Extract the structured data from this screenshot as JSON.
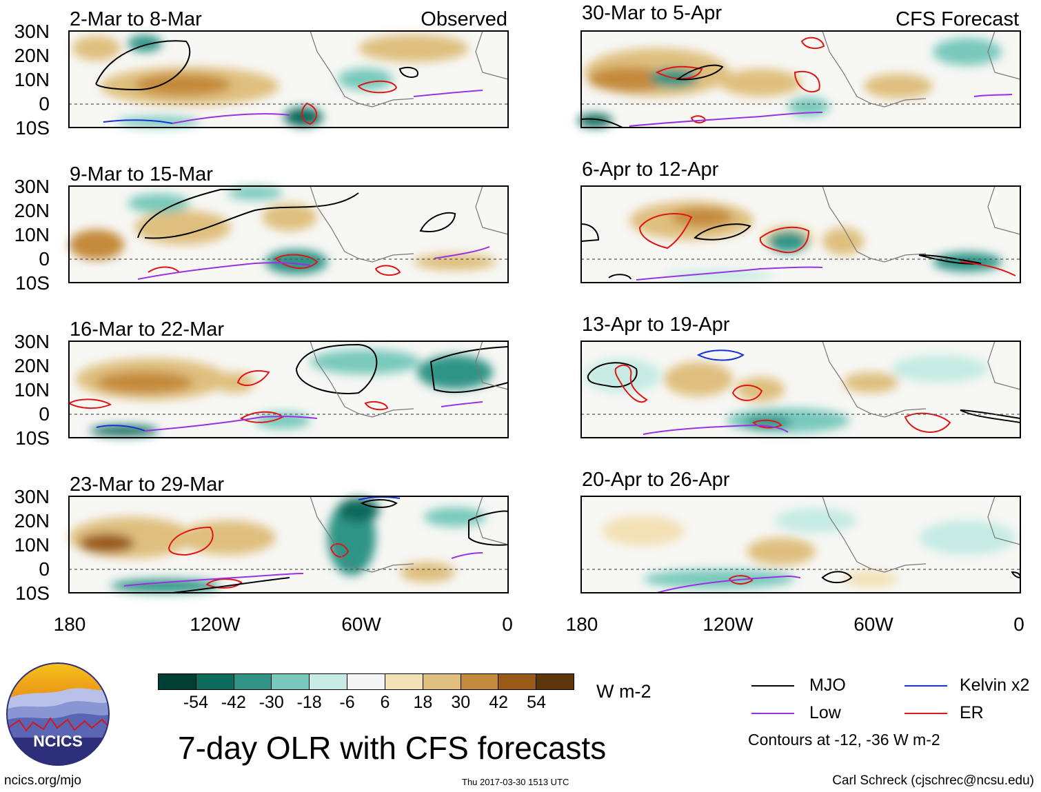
{
  "map": {
    "header_left": "Observed",
    "header_right": "CFS Forecast",
    "lat_labels": [
      "30N",
      "20N",
      "10N",
      "0",
      "10S"
    ],
    "lon_labels": [
      "180",
      "120W",
      "60W",
      "0"
    ],
    "panels": [
      {
        "title": "2-Mar to 8-Mar",
        "kind": "observed"
      },
      {
        "title": "9-Mar to 15-Mar",
        "kind": "observed"
      },
      {
        "title": "16-Mar to 22-Mar",
        "kind": "observed"
      },
      {
        "title": "23-Mar to 29-Mar",
        "kind": "observed"
      },
      {
        "title": "30-Mar to 5-Apr",
        "kind": "forecast"
      },
      {
        "title": "6-Apr to 12-Apr",
        "kind": "forecast"
      },
      {
        "title": "13-Apr to 19-Apr",
        "kind": "forecast"
      },
      {
        "title": "20-Apr to 26-Apr",
        "kind": "forecast"
      }
    ]
  },
  "colorbar": {
    "unit": "W m-2",
    "tick_labels": [
      "-54",
      "-42",
      "-30",
      "-18",
      "-6",
      "6",
      "18",
      "30",
      "42",
      "54"
    ],
    "colors": [
      "#003d32",
      "#0d6b5c",
      "#2f9486",
      "#78c9bc",
      "#c5ebe3",
      "#f5f5f5",
      "#f3e1b6",
      "#dfbf7e",
      "#c48a3b",
      "#985a16",
      "#5c360b"
    ]
  },
  "legend": {
    "items": [
      {
        "label": "MJO",
        "color": "#000000"
      },
      {
        "label": "Kelvin x2",
        "color": "#1432d8"
      },
      {
        "label": "Low",
        "color": "#9a30e0"
      },
      {
        "label": "ER",
        "color": "#e01414"
      }
    ],
    "note": "Contours at -12, -36 W m-2"
  },
  "title": "7-day OLR with CFS forecasts",
  "footer": {
    "site": "ncics.org/mjo",
    "timestamp": "Thu 2017-03-30 1513 UTC",
    "credit": "Carl Schreck (cjschrec@ncsu.edu)"
  },
  "logo": {
    "text": "NCICS"
  }
}
